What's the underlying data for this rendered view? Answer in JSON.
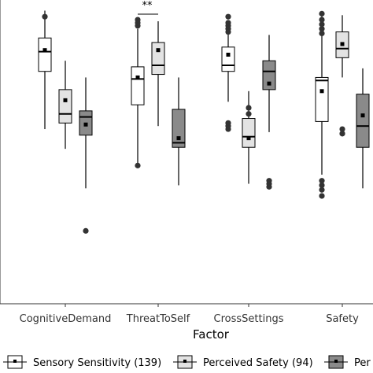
{
  "chart_data": {
    "type": "boxplot",
    "xlabel": "Factor",
    "ylabel": "",
    "ylim": [
      0,
      1
    ],
    "categories": [
      "CognitiveDemand",
      "ThreatToSelf",
      "CrossSettings",
      "Safety"
    ],
    "series": [
      {
        "name": "Sensory Sensitivity (139)",
        "fill": "#ffffff",
        "boxes": [
          {
            "min": 0.575,
            "q1": 0.765,
            "median": 0.83,
            "q3": 0.875,
            "max": 0.965,
            "mean": 0.835,
            "outliers": [
              0.945
            ]
          },
          {
            "min": 0.455,
            "q1": 0.655,
            "median": 0.74,
            "q3": 0.78,
            "max": 0.905,
            "mean": 0.745,
            "outliers": [
              0.455,
              0.915,
              0.925,
              0.935
            ]
          },
          {
            "min": 0.665,
            "q1": 0.765,
            "median": 0.785,
            "q3": 0.845,
            "max": 0.915,
            "mean": 0.82,
            "outliers": [
              0.575,
              0.585,
              0.595,
              0.895,
              0.905,
              0.915,
              0.925,
              0.945
            ]
          },
          {
            "min": 0.425,
            "q1": 0.6,
            "median": 0.735,
            "q3": 0.745,
            "max": 0.955,
            "mean": 0.7,
            "outliers": [
              0.355,
              0.375,
              0.39,
              0.405,
              0.89,
              0.905,
              0.92,
              0.935,
              0.955
            ]
          }
        ]
      },
      {
        "name": "Perceived Safety (94)",
        "fill": "#e3e3e3",
        "boxes": [
          {
            "min": 0.51,
            "q1": 0.595,
            "median": 0.625,
            "q3": 0.705,
            "max": 0.8,
            "mean": 0.67,
            "outliers": []
          },
          {
            "min": 0.585,
            "q1": 0.755,
            "median": 0.785,
            "q3": 0.86,
            "max": 0.93,
            "mean": 0.835,
            "outliers": []
          },
          {
            "min": 0.395,
            "q1": 0.515,
            "median": 0.55,
            "q3": 0.61,
            "max": 0.7,
            "mean": 0.545,
            "outliers": [
              0.625,
              0.645
            ]
          },
          {
            "min": 0.745,
            "q1": 0.81,
            "median": 0.84,
            "q3": 0.895,
            "max": 0.95,
            "mean": 0.855,
            "outliers": [
              0.56,
              0.575
            ]
          }
        ]
      },
      {
        "name": "Perceived Insecurity",
        "fill": "#8a8a8a",
        "boxes": [
          {
            "min": 0.38,
            "q1": 0.555,
            "median": 0.615,
            "q3": 0.635,
            "max": 0.745,
            "mean": 0.59,
            "outliers": [
              0.24
            ]
          },
          {
            "min": 0.39,
            "q1": 0.515,
            "median": 0.53,
            "q3": 0.64,
            "max": 0.745,
            "mean": 0.545,
            "outliers": []
          },
          {
            "min": 0.565,
            "q1": 0.705,
            "median": 0.765,
            "q3": 0.8,
            "max": 0.885,
            "mean": 0.725,
            "outliers": [
              0.385,
              0.395,
              0.405
            ]
          },
          {
            "min": 0.38,
            "q1": 0.515,
            "median": 0.585,
            "q3": 0.69,
            "max": 0.775,
            "mean": 0.62,
            "outliers": []
          }
        ]
      }
    ],
    "annotations": [
      {
        "text": "**",
        "category": "ThreatToSelf"
      }
    ],
    "legend": {
      "position": "bottom"
    }
  }
}
